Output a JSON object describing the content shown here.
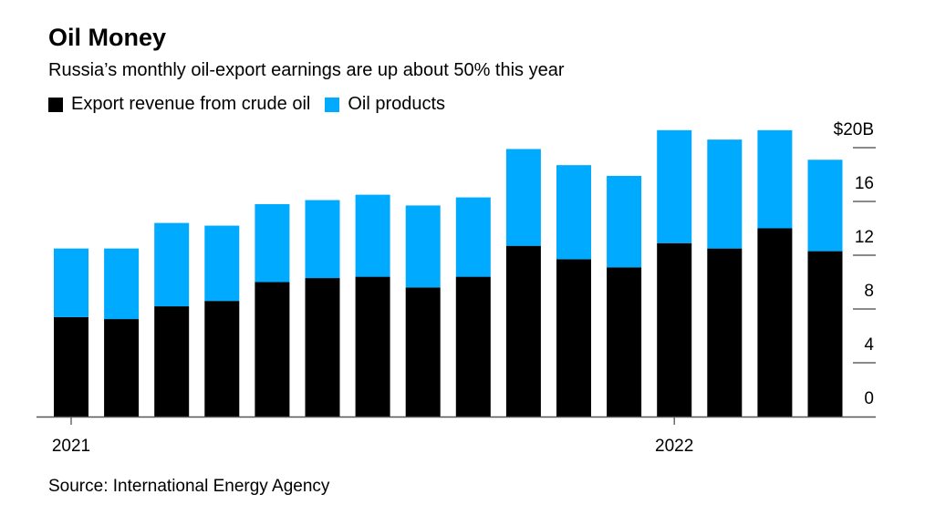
{
  "title": "Oil Money",
  "subtitle": "Russia’s monthly oil-export earnings are up about 50% this year",
  "source": "Source: International Energy Agency",
  "chart_data": {
    "type": "bar",
    "stacked": true,
    "categories": [
      "Jan 2021",
      "Feb 2021",
      "Mar 2021",
      "Apr 2021",
      "May 2021",
      "Jun 2021",
      "Jul 2021",
      "Aug 2021",
      "Sep 2021",
      "Oct 2021",
      "Nov 2021",
      "Dec 2021",
      "Jan 2022",
      "Feb 2022",
      "Mar 2022",
      "Apr 2022"
    ],
    "x_tick_labels": [
      {
        "category": "Jan 2021",
        "label": "2021"
      },
      {
        "category": "Jan 2022",
        "label": "2022"
      }
    ],
    "series": [
      {
        "name": "Export revenue from crude oil",
        "color": "#000000",
        "values": [
          7.4,
          7.25,
          8.2,
          8.6,
          10.0,
          10.3,
          10.4,
          9.6,
          10.4,
          12.7,
          11.7,
          11.1,
          12.9,
          12.5,
          14.0,
          12.3
        ]
      },
      {
        "name": "Oil products",
        "color": "#00aaff",
        "values": [
          5.1,
          5.25,
          6.2,
          5.6,
          5.8,
          5.8,
          6.1,
          6.1,
          5.9,
          7.2,
          7.0,
          6.8,
          8.4,
          8.1,
          7.3,
          6.8
        ]
      }
    ],
    "y_ticks": [
      {
        "value": 0,
        "label": "0"
      },
      {
        "value": 4,
        "label": "4"
      },
      {
        "value": 8,
        "label": "8"
      },
      {
        "value": 12,
        "label": "12"
      },
      {
        "value": 16,
        "label": "16"
      },
      {
        "value": 20,
        "label": "$20B"
      }
    ],
    "ylim": [
      0,
      20
    ],
    "y_axis_position": "right",
    "grid": false,
    "legend_placement": "top-left"
  }
}
